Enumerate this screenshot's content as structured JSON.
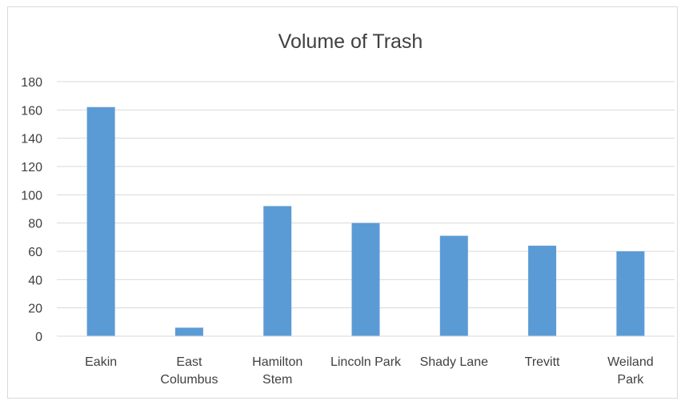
{
  "chart_data": {
    "type": "bar",
    "title": "Volume of Trash",
    "xlabel": "",
    "ylabel": "",
    "categories": [
      "Eakin",
      "East Columbus",
      "Hamilton Stem",
      "Lincoln Park",
      "Shady Lane",
      "Trevitt",
      "Weiland Park"
    ],
    "category_lines": [
      [
        "Eakin"
      ],
      [
        "East",
        "Columbus"
      ],
      [
        "Hamilton",
        "Stem"
      ],
      [
        "Lincoln Park"
      ],
      [
        "Shady Lane"
      ],
      [
        "Trevitt"
      ],
      [
        "Weiland",
        "Park"
      ]
    ],
    "values": [
      162,
      6,
      92,
      80,
      71,
      64,
      60
    ],
    "ylim": [
      0,
      180
    ],
    "yticks": [
      0,
      20,
      40,
      60,
      80,
      100,
      120,
      140,
      160,
      180
    ],
    "grid": true,
    "legend": "none",
    "bar_color": "#5b9bd5",
    "grid_color": "#d9d9d9"
  }
}
